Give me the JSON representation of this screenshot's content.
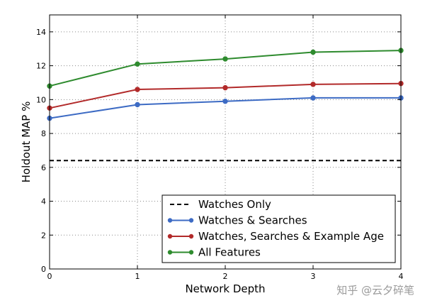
{
  "chart_data": {
    "type": "line",
    "xlabel": "Network Depth",
    "ylabel": "Holdout MAP %",
    "x": [
      0,
      1,
      2,
      3,
      4
    ],
    "xlim": [
      0,
      4
    ],
    "ylim": [
      0,
      15
    ],
    "xticks": [
      "0",
      "1",
      "2",
      "3",
      "4"
    ],
    "yticks": [
      "0",
      "2",
      "4",
      "6",
      "8",
      "10",
      "12",
      "14"
    ],
    "grid": true,
    "legend_position": "lower-right",
    "series": [
      {
        "name": "Watches Only",
        "style": "dashed",
        "color": "#000000",
        "values": [
          6.4,
          6.4,
          6.4,
          6.4,
          6.4
        ]
      },
      {
        "name": "Watches & Searches",
        "style": "solid",
        "color": "#3d6bc4",
        "values": [
          8.9,
          9.7,
          9.9,
          10.1,
          10.1
        ]
      },
      {
        "name": "Watches, Searches & Example Age",
        "style": "solid",
        "color": "#b22a2a",
        "values": [
          9.5,
          10.6,
          10.7,
          10.9,
          10.95
        ]
      },
      {
        "name": "All Features",
        "style": "solid",
        "color": "#2e8b2e",
        "values": [
          10.8,
          12.1,
          12.4,
          12.8,
          12.9
        ]
      }
    ]
  },
  "watermark": "知乎 @云夕碎笔"
}
